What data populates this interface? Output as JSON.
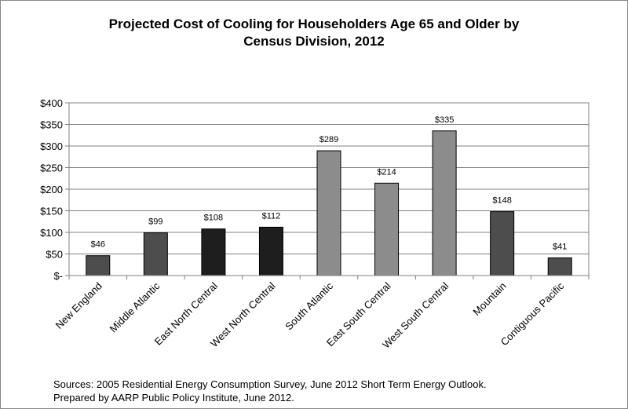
{
  "chart_data": {
    "type": "bar",
    "title_line1": "Projected Cost of Cooling for Householders Age 65 and Older by",
    "title_line2": "Census Division, 2012",
    "categories": [
      "New England",
      "Middle Atlantic",
      "East North Central",
      "West North Central",
      "South Atlantic",
      "East South Central",
      "West South Central",
      "Mountain",
      "Contiguous Pacific"
    ],
    "values": [
      46,
      99,
      108,
      112,
      289,
      214,
      335,
      148,
      41
    ],
    "data_labels": [
      "$46",
      "$99",
      "$108",
      "$112",
      "$289",
      "$214",
      "$335",
      "$148",
      "$41"
    ],
    "bar_colors": [
      "#4d4d4d",
      "#4d4d4d",
      "#1e1e1e",
      "#1e1e1e",
      "#8c8c8c",
      "#8c8c8c",
      "#8c8c8c",
      "#4d4d4d",
      "#4d4d4d"
    ],
    "y_ticks": [
      0,
      50,
      100,
      150,
      200,
      250,
      300,
      350,
      400
    ],
    "y_tick_labels": [
      "$-",
      "$50",
      "$100",
      "$150",
      "$200",
      "$250",
      "$300",
      "$350",
      "$400"
    ],
    "ylim": [
      0,
      400
    ],
    "xlabel": "",
    "ylabel": "",
    "grid": true,
    "legend": "none"
  },
  "source": {
    "line1": "Sources: 2005 Residential Energy Consumption Survey, June 2012 Short Term Energy Outlook.",
    "line2": " Prepared by AARP Public Policy Institute, June 2012."
  }
}
